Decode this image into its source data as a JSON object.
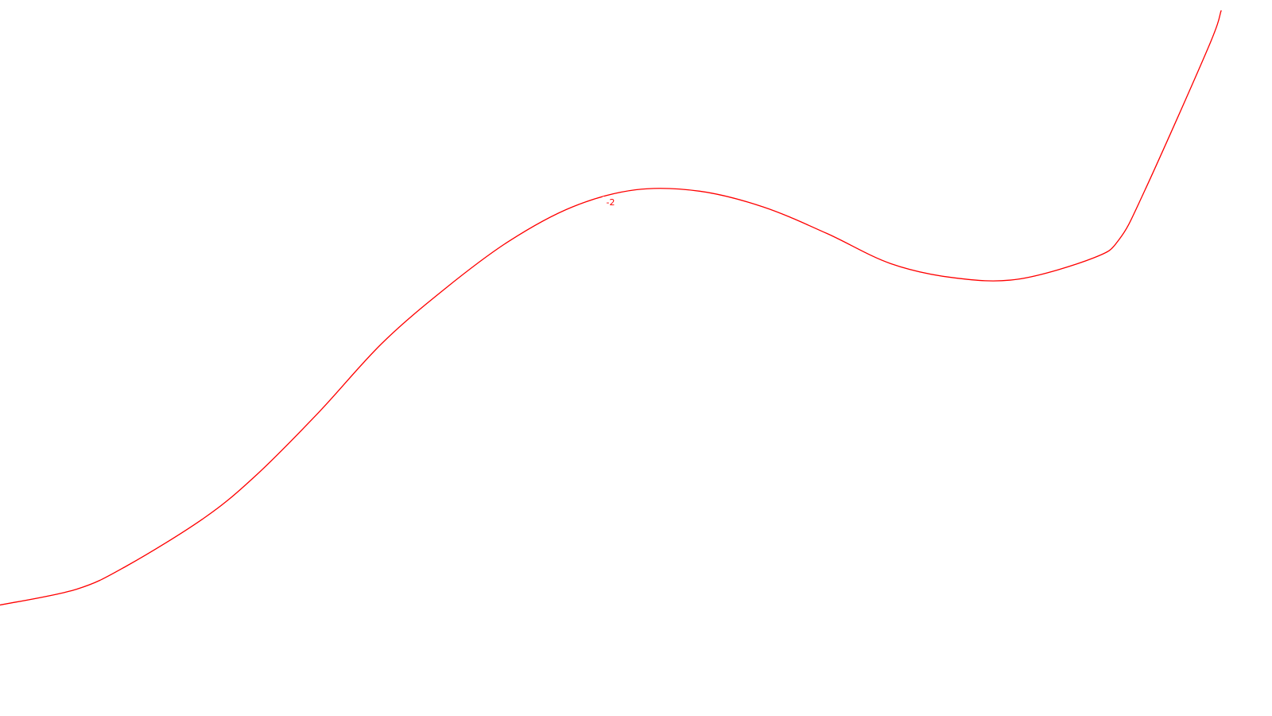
{
  "chart_data": {
    "type": "line",
    "title": "",
    "xlabel": "",
    "ylabel": "",
    "grid": false,
    "axes_visible": false,
    "series": [
      {
        "level_label": "-2",
        "color": "#ff0000",
        "points": [
          [
            0.0,
            0.155
          ],
          [
            0.06,
            0.177
          ],
          [
            0.1,
            0.21
          ],
          [
            0.16,
            0.276
          ],
          [
            0.2,
            0.334
          ],
          [
            0.25,
            0.423
          ],
          [
            0.3,
            0.52
          ],
          [
            0.35,
            0.597
          ],
          [
            0.4,
            0.663
          ],
          [
            0.45,
            0.711
          ],
          [
            0.5,
            0.735
          ],
          [
            0.55,
            0.733
          ],
          [
            0.6,
            0.711
          ],
          [
            0.65,
            0.674
          ],
          [
            0.7,
            0.632
          ],
          [
            0.75,
            0.612
          ],
          [
            0.8,
            0.61
          ],
          [
            0.86,
            0.64
          ],
          [
            0.88,
            0.666
          ],
          [
            0.9,
            0.734
          ],
          [
            0.95,
            0.934
          ],
          [
            0.96,
            0.985
          ]
        ]
      }
    ]
  }
}
